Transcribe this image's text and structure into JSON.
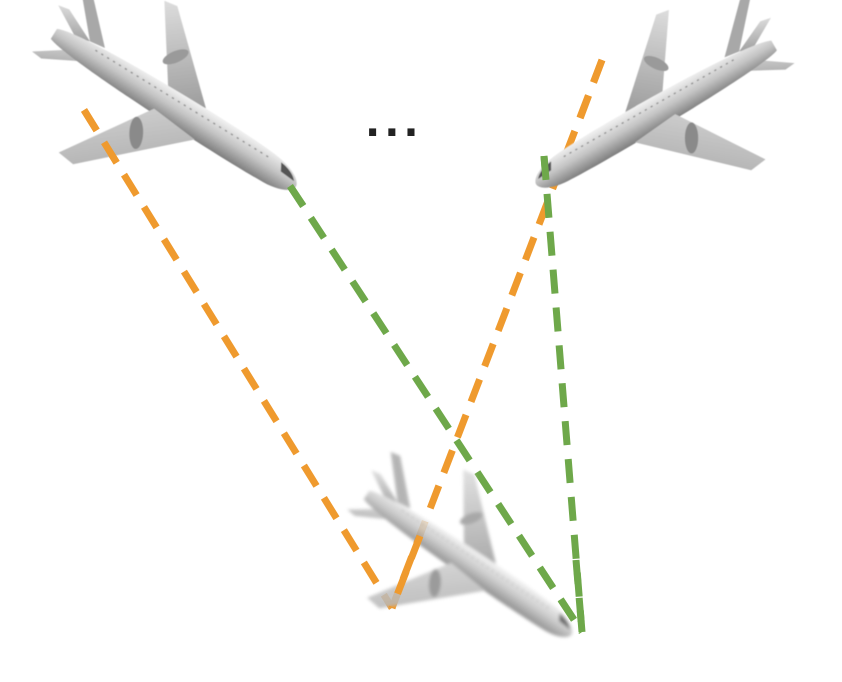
{
  "ellipsis": "...",
  "colors": {
    "orange_correspondence": "#ef9a2e",
    "green_correspondence": "#6ea84a",
    "airplane_light": "#e6e6e6",
    "airplane_mid": "#b4b4b4",
    "airplane_dark": "#7c7c7c"
  },
  "icons": {
    "source_view_left": "airplane-icon",
    "source_view_right": "airplane-icon",
    "target_view": "airplane-icon"
  },
  "correspondences": [
    {
      "color": "orange",
      "from": "left-view-wingtip",
      "to": "target-view-wingtip"
    },
    {
      "color": "green",
      "from": "left-view-nose",
      "to": "target-view-nose"
    },
    {
      "color": "orange",
      "from": "right-view-wingtip",
      "to": "target-view-wingtip"
    },
    {
      "color": "green",
      "from": "right-view-nose",
      "to": "target-view-nose"
    }
  ]
}
